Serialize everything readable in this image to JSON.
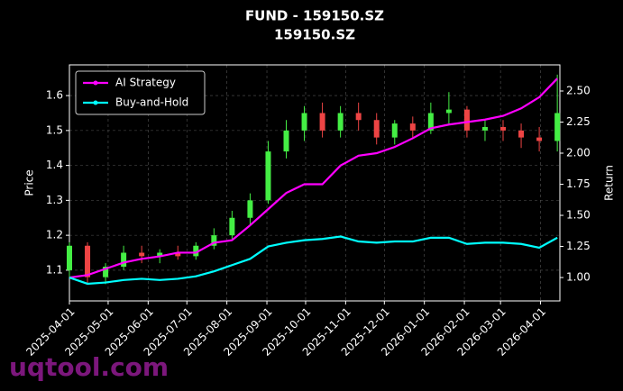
{
  "chart_data": {
    "type": "candlestick",
    "title": "FUND - 159150.SZ",
    "subtitle": "159150.SZ",
    "ylabel": "Price",
    "y2label": "Return",
    "watermark": "uqtool.com",
    "x": [
      "2025-04-01",
      "2025-04-15",
      "2025-04-29",
      "2025-05-13",
      "2025-05-27",
      "2025-06-10",
      "2025-06-24",
      "2025-07-08",
      "2025-07-22",
      "2025-08-05",
      "2025-08-19",
      "2025-09-02",
      "2025-09-16",
      "2025-09-30",
      "2025-10-14",
      "2025-10-28",
      "2025-11-11",
      "2025-11-25",
      "2025-12-09",
      "2025-12-23",
      "2026-01-06",
      "2026-01-20",
      "2026-02-03",
      "2026-02-17",
      "2026-03-03",
      "2026-03-17",
      "2026-03-31",
      "2026-04-14"
    ],
    "open": [
      1.1,
      1.17,
      1.08,
      1.11,
      1.15,
      1.14,
      1.15,
      1.14,
      1.17,
      1.2,
      1.25,
      1.3,
      1.44,
      1.5,
      1.55,
      1.5,
      1.55,
      1.53,
      1.48,
      1.52,
      1.5,
      1.55,
      1.56,
      1.5,
      1.51,
      1.5,
      1.48,
      1.47
    ],
    "high": [
      1.18,
      1.18,
      1.12,
      1.17,
      1.17,
      1.16,
      1.17,
      1.18,
      1.22,
      1.27,
      1.32,
      1.47,
      1.53,
      1.57,
      1.58,
      1.57,
      1.58,
      1.55,
      1.53,
      1.54,
      1.58,
      1.61,
      1.57,
      1.53,
      1.53,
      1.52,
      1.51,
      1.66
    ],
    "low": [
      1.08,
      1.06,
      1.06,
      1.1,
      1.12,
      1.12,
      1.13,
      1.13,
      1.16,
      1.19,
      1.23,
      1.29,
      1.42,
      1.47,
      1.48,
      1.48,
      1.5,
      1.46,
      1.46,
      1.48,
      1.49,
      1.52,
      1.48,
      1.47,
      1.47,
      1.45,
      1.44,
      1.44
    ],
    "close": [
      1.17,
      1.08,
      1.11,
      1.15,
      1.14,
      1.15,
      1.14,
      1.17,
      1.2,
      1.25,
      1.3,
      1.44,
      1.5,
      1.55,
      1.5,
      1.55,
      1.53,
      1.48,
      1.52,
      1.5,
      1.55,
      1.56,
      1.5,
      1.51,
      1.5,
      1.48,
      1.47,
      1.55
    ],
    "up_color": "#44ee44",
    "down_color": "#ee4444",
    "series": [
      {
        "name": "AI Strategy",
        "color": "#ff00ff",
        "axis": "y2",
        "values": [
          1.0,
          1.02,
          1.07,
          1.12,
          1.15,
          1.17,
          1.2,
          1.2,
          1.28,
          1.3,
          1.42,
          1.55,
          1.68,
          1.75,
          1.75,
          1.9,
          1.98,
          2.0,
          2.05,
          2.12,
          2.2,
          2.23,
          2.25,
          2.27,
          2.3,
          2.36,
          2.45,
          2.6
        ]
      },
      {
        "name": "Buy-and-Hold",
        "color": "#00ffff",
        "axis": "y2",
        "values": [
          1.0,
          0.95,
          0.96,
          0.98,
          0.99,
          0.98,
          0.99,
          1.01,
          1.05,
          1.1,
          1.15,
          1.25,
          1.28,
          1.3,
          1.31,
          1.33,
          1.29,
          1.28,
          1.29,
          1.29,
          1.32,
          1.32,
          1.27,
          1.28,
          1.28,
          1.27,
          1.24,
          1.32
        ]
      }
    ],
    "xlim": [
      "2025-04-01",
      "2026-04-16"
    ],
    "xticks": [
      "2025-04-01",
      "2025-05-01",
      "2025-06-01",
      "2025-07-01",
      "2025-08-01",
      "2025-09-01",
      "2025-10-01",
      "2025-11-01",
      "2025-12-01",
      "2026-01-01",
      "2026-02-01",
      "2026-03-01",
      "2026-04-01"
    ],
    "ylim": [
      1.012,
      1.688
    ],
    "yticks": [
      1.1,
      1.2,
      1.3,
      1.4,
      1.5,
      1.6
    ],
    "y2lim": [
      0.812,
      2.71
    ],
    "y2ticks": [
      {
        "value": 1,
        "label": "1.00"
      },
      {
        "value": 1.25,
        "label": "1.25"
      },
      {
        "value": 1.5,
        "label": "1.50"
      },
      {
        "value": 1.75,
        "label": "1.75"
      },
      {
        "value": 2,
        "label": "2.00"
      },
      {
        "value": 2.25,
        "label": "2.25"
      },
      {
        "value": 2.5,
        "label": "2.50"
      }
    ],
    "grid": true,
    "legend": "upper left"
  }
}
